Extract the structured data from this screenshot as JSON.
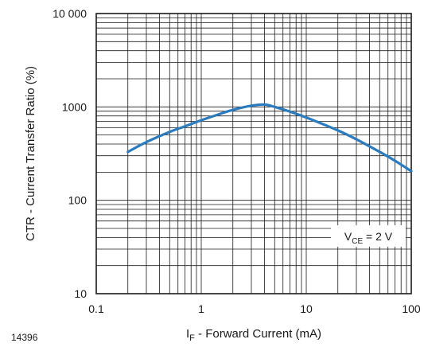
{
  "figure_number": "14396",
  "colors": {
    "curve": "#2b7bbf",
    "grid": "#1a1a1a"
  },
  "chart_data": {
    "type": "line",
    "title": "",
    "xlabel": {
      "main": "I",
      "sub": "F",
      "rest": " - Forward Current (mA)"
    },
    "ylabel": "CTR - Current Transfer Ratio (%)",
    "xscale": "log",
    "yscale": "log",
    "xlim": [
      0.1,
      100
    ],
    "ylim": [
      10,
      10000
    ],
    "grid": true,
    "x_ticks": [
      0.1,
      1,
      10,
      100
    ],
    "x_tick_labels": [
      "0.1",
      "1",
      "10",
      "100"
    ],
    "y_ticks": [
      10,
      100,
      1000,
      10000
    ],
    "y_tick_labels": [
      "10",
      "100",
      "1000",
      "10 000"
    ],
    "annotation": {
      "main": "V",
      "sub": "CE",
      "rest": " = 2 V"
    },
    "series": [
      {
        "x": [
          0.2,
          0.3,
          0.5,
          0.7,
          1,
          1.5,
          2,
          3,
          4,
          5,
          7,
          10,
          20,
          30,
          50,
          70,
          100
        ],
        "y": [
          330,
          420,
          540,
          620,
          720,
          840,
          930,
          1030,
          1060,
          1000,
          890,
          770,
          560,
          450,
          330,
          265,
          205
        ]
      }
    ]
  }
}
